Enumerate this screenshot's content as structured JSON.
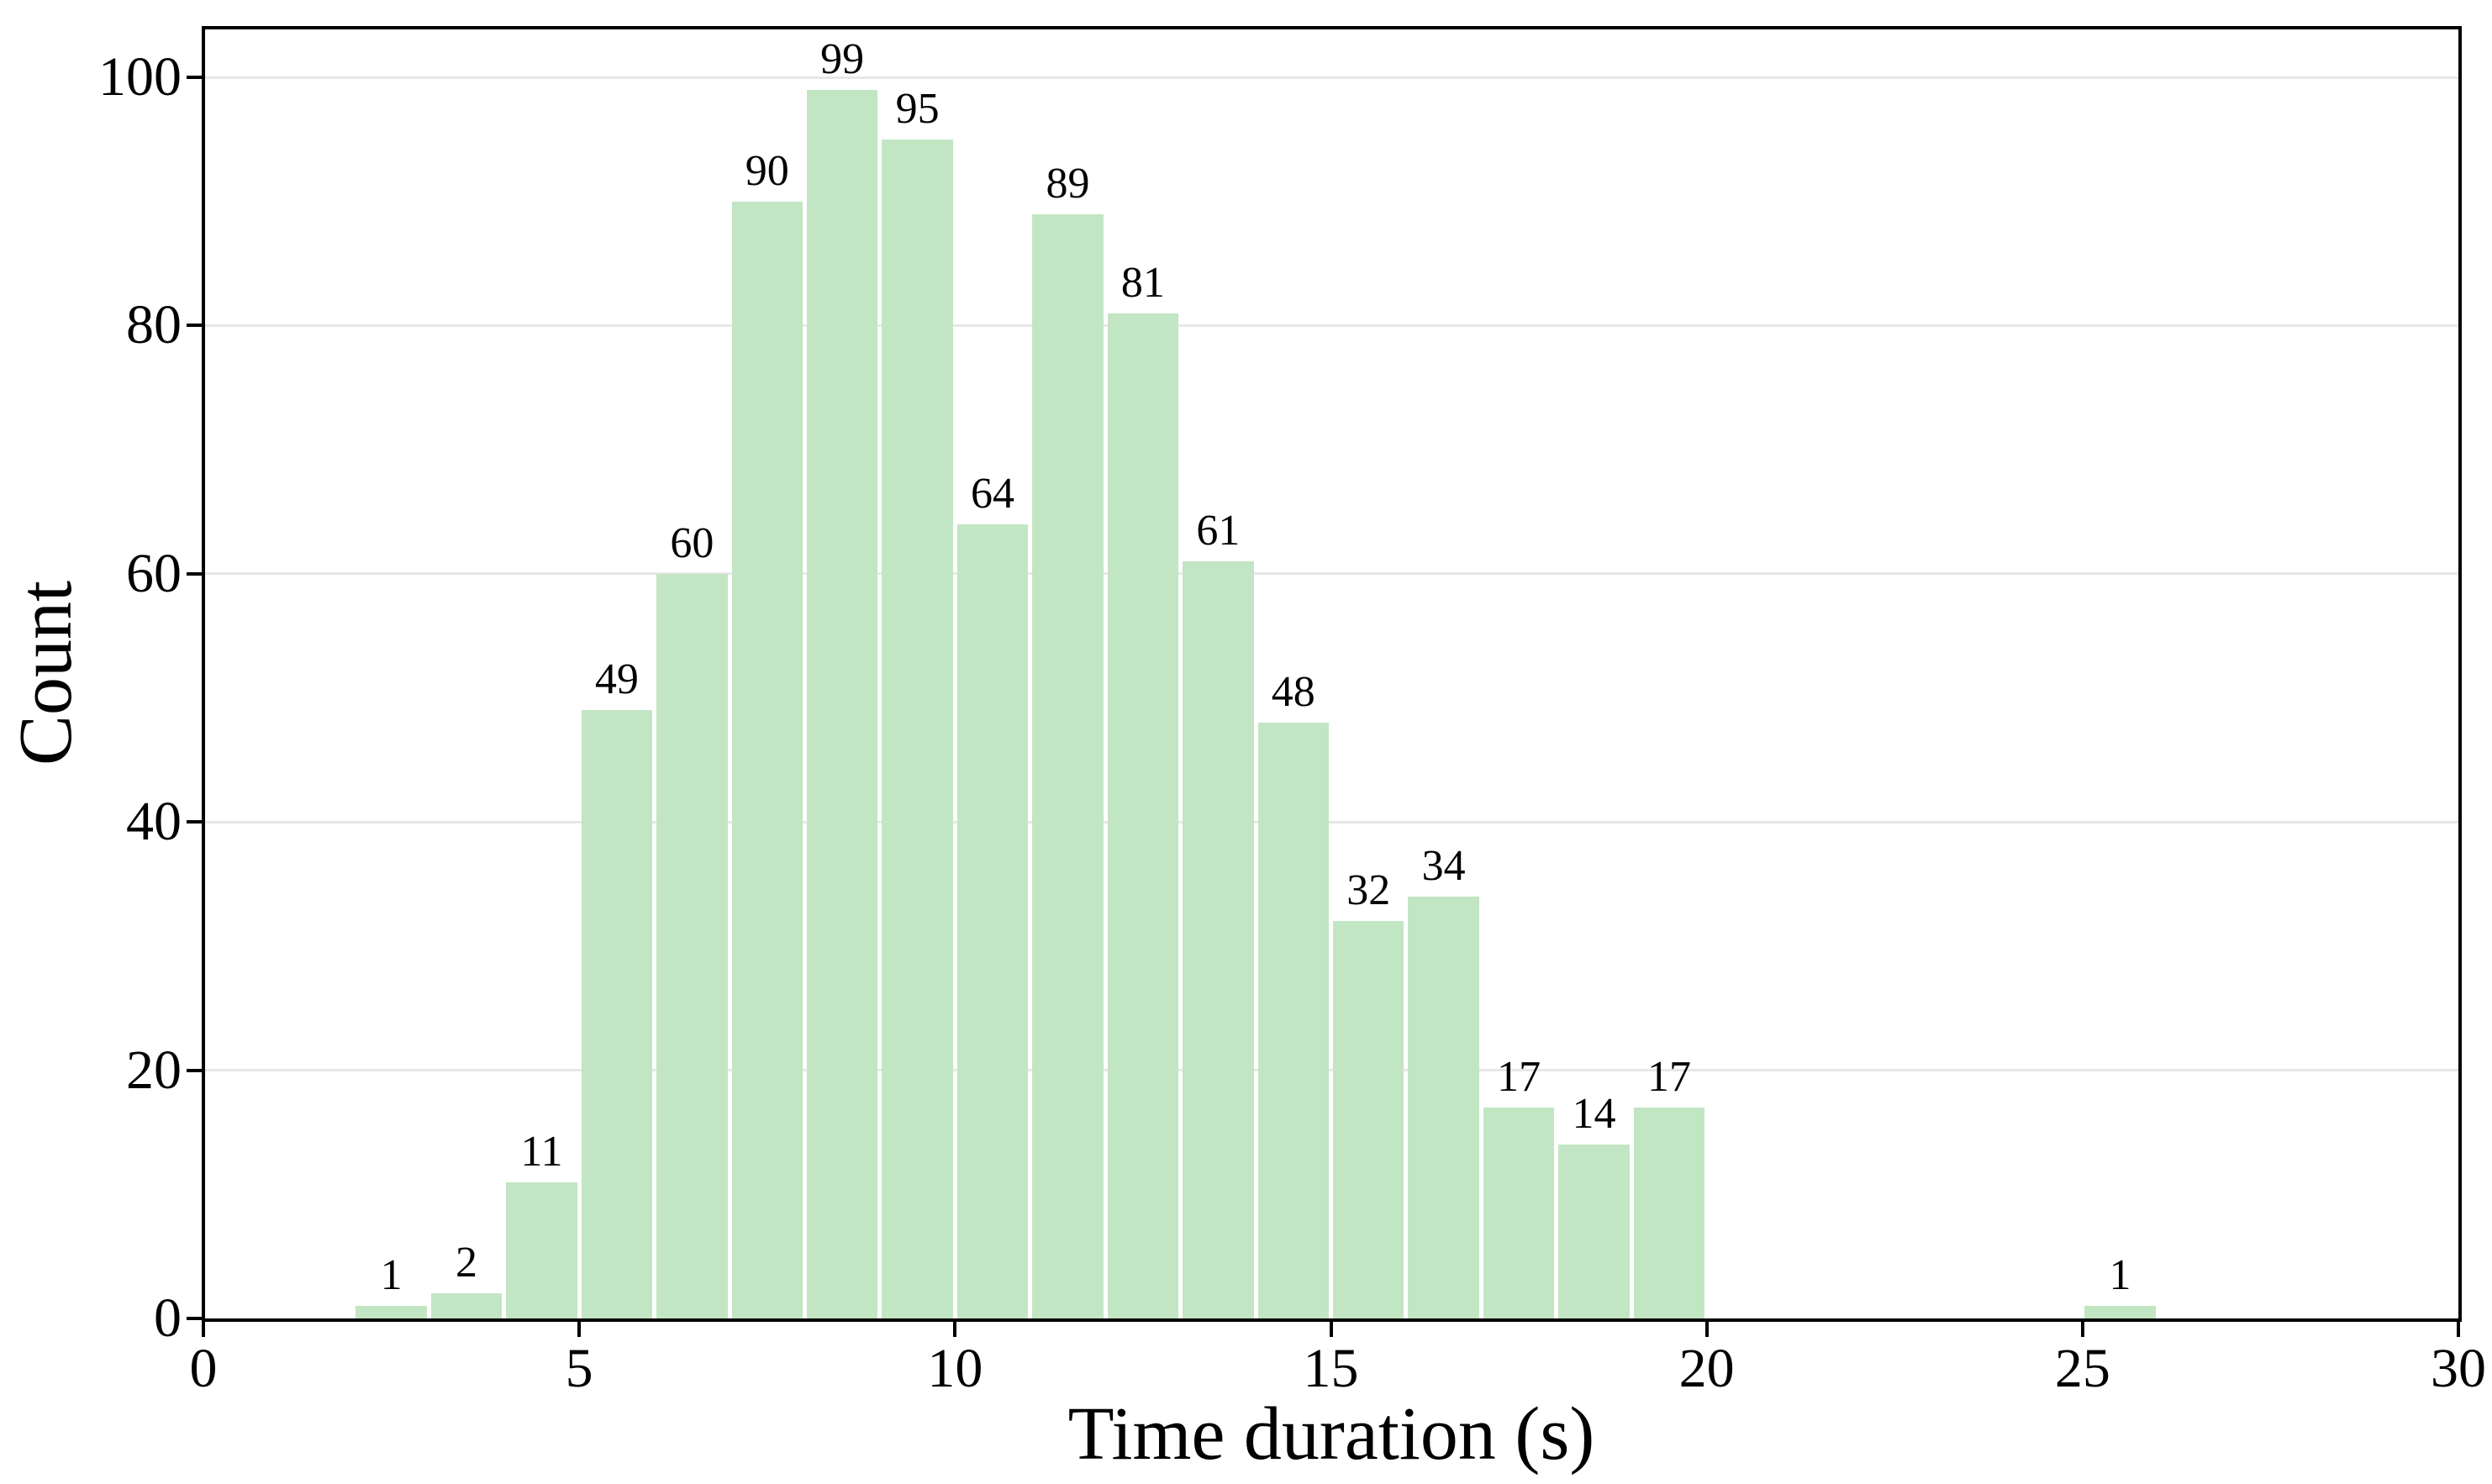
{
  "figure": {
    "background": "#ffffff",
    "text_color": "#000000"
  },
  "chart_data": {
    "type": "bar",
    "subtype": "histogram",
    "title": "",
    "xlabel": "Time duration (s)",
    "ylabel": "Count",
    "xlim": [
      0,
      30
    ],
    "ylim": [
      0,
      104
    ],
    "x_ticks": [
      0,
      5,
      10,
      15,
      20,
      25,
      30
    ],
    "y_ticks": [
      0,
      20,
      40,
      60,
      80,
      100
    ],
    "grid": {
      "axis": "y",
      "color": "#e7e7e7"
    },
    "legend": null,
    "bar_color": "#c2e6c3",
    "bar_edge_color": "#ffffff",
    "axis_color": "#000000",
    "text_color": "#000000",
    "bin_width": 1,
    "bar_value_labels": true,
    "bins": [
      {
        "range": [
          2,
          3
        ],
        "count": 1,
        "label": "1"
      },
      {
        "range": [
          3,
          4
        ],
        "count": 2,
        "label": "2"
      },
      {
        "range": [
          4,
          5
        ],
        "count": 11,
        "label": "11"
      },
      {
        "range": [
          5,
          6
        ],
        "count": 49,
        "label": "49"
      },
      {
        "range": [
          6,
          7
        ],
        "count": 60,
        "label": "60"
      },
      {
        "range": [
          7,
          8
        ],
        "count": 90,
        "label": "90"
      },
      {
        "range": [
          8,
          9
        ],
        "count": 99,
        "label": "99"
      },
      {
        "range": [
          9,
          10
        ],
        "count": 95,
        "label": "95"
      },
      {
        "range": [
          10,
          11
        ],
        "count": 64,
        "label": "64"
      },
      {
        "range": [
          11,
          12
        ],
        "count": 89,
        "label": "89"
      },
      {
        "range": [
          12,
          13
        ],
        "count": 81,
        "label": "81"
      },
      {
        "range": [
          13,
          14
        ],
        "count": 61,
        "label": "61"
      },
      {
        "range": [
          14,
          15
        ],
        "count": 48,
        "label": "48"
      },
      {
        "range": [
          15,
          16
        ],
        "count": 32,
        "label": "32"
      },
      {
        "range": [
          16,
          17
        ],
        "count": 34,
        "label": "34"
      },
      {
        "range": [
          17,
          18
        ],
        "count": 17,
        "label": "17"
      },
      {
        "range": [
          18,
          19
        ],
        "count": 14,
        "label": "14"
      },
      {
        "range": [
          19,
          20
        ],
        "count": 17,
        "label": "17"
      },
      {
        "range": [
          25,
          26
        ],
        "count": 1,
        "label": "1"
      }
    ]
  }
}
